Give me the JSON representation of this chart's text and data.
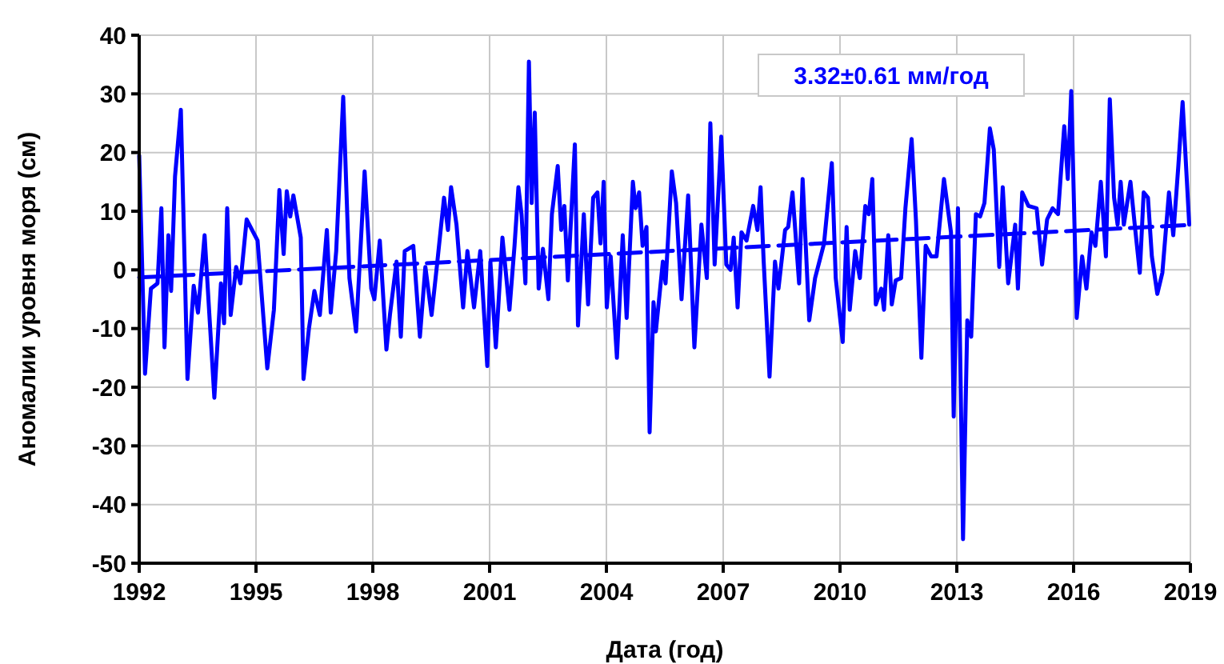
{
  "chart_data": {
    "type": "line",
    "xlabel": "Дата (год)",
    "ylabel": "Аномалии уровня моря (см)",
    "xlim": [
      1992,
      2019
    ],
    "ylim": [
      -50,
      40
    ],
    "xticks": [
      1992,
      1995,
      1998,
      2001,
      2004,
      2007,
      2010,
      2013,
      2016,
      2019
    ],
    "yticks": [
      -50,
      -40,
      -30,
      -20,
      -10,
      0,
      10,
      20,
      30,
      40
    ],
    "grid": true,
    "annotations": [
      "3.32±0.61 мм/год"
    ],
    "series": [
      {
        "color": "#0000ff",
        "line_style": "solid",
        "x": [
          1992.0,
          1992.15,
          1992.3,
          1992.47,
          1992.57,
          1992.65,
          1992.75,
          1992.82,
          1992.92,
          1993.07,
          1993.24,
          1993.4,
          1993.51,
          1993.68,
          1993.93,
          1994.1,
          1994.18,
          1994.26,
          1994.35,
          1994.49,
          1994.6,
          1994.76,
          1994.93,
          1995.04,
          1995.29,
          1995.46,
          1995.6,
          1995.71,
          1995.79,
          1995.88,
          1995.96,
          1996.15,
          1996.22,
          1996.36,
          1996.5,
          1996.64,
          1996.82,
          1996.92,
          1997.06,
          1997.24,
          1997.4,
          1997.57,
          1997.79,
          1997.96,
          1998.04,
          1998.18,
          1998.35,
          1998.44,
          1998.61,
          1998.72,
          1998.82,
          1999.04,
          1999.21,
          1999.35,
          1999.51,
          1999.65,
          1999.83,
          1999.93,
          2000.01,
          2000.15,
          2000.32,
          2000.43,
          2000.6,
          2000.76,
          2000.94,
          2001.02,
          2001.16,
          2001.33,
          2001.51,
          2001.64,
          2001.74,
          2001.82,
          2001.92,
          2002.01,
          2002.08,
          2002.16,
          2002.26,
          2002.37,
          2002.51,
          2002.6,
          2002.75,
          2002.84,
          2002.92,
          2003.01,
          2003.19,
          2003.27,
          2003.42,
          2003.53,
          2003.66,
          2003.77,
          2003.85,
          2003.93,
          2004.01,
          2004.11,
          2004.27,
          2004.42,
          2004.52,
          2004.68,
          2004.75,
          2004.84,
          2004.93,
          2005.03,
          2005.11,
          2005.21,
          2005.27,
          2005.45,
          2005.52,
          2005.68,
          2005.79,
          2005.93,
          2006.1,
          2006.26,
          2006.44,
          2006.58,
          2006.67,
          2006.78,
          2006.95,
          2007.08,
          2007.19,
          2007.27,
          2007.37,
          2007.47,
          2007.6,
          2007.77,
          2007.88,
          2007.96,
          2008.04,
          2008.19,
          2008.33,
          2008.42,
          2008.59,
          2008.67,
          2008.78,
          2008.95,
          2009.04,
          2009.21,
          2009.36,
          2009.59,
          2009.79,
          2009.89,
          2010.07,
          2010.17,
          2010.25,
          2010.39,
          2010.51,
          2010.65,
          2010.74,
          2010.83,
          2010.92,
          2011.06,
          2011.13,
          2011.24,
          2011.33,
          2011.43,
          2011.57,
          2011.68,
          2011.84,
          2011.95,
          2012.09,
          2012.2,
          2012.34,
          2012.48,
          2012.67,
          2012.85,
          2012.92,
          2013.03,
          2013.16,
          2013.27,
          2013.37,
          2013.49,
          2013.6,
          2013.71,
          2013.85,
          2013.95,
          2014.09,
          2014.18,
          2014.32,
          2014.5,
          2014.57,
          2014.68,
          2014.84,
          2015.05,
          2015.19,
          2015.32,
          2015.46,
          2015.6,
          2015.76,
          2015.85,
          2015.94,
          2016.08,
          2016.22,
          2016.33,
          2016.46,
          2016.56,
          2016.7,
          2016.83,
          2016.93,
          2017.04,
          2017.13,
          2017.21,
          2017.29,
          2017.46,
          2017.57,
          2017.7,
          2017.8,
          2017.91,
          2018.01,
          2018.15,
          2018.28,
          2018.45,
          2018.56,
          2018.69,
          2018.8,
          2018.97
        ],
        "values": [
          19.5,
          -17.7,
          -3.2,
          -2.3,
          10.5,
          -13.2,
          5.9,
          -3.6,
          15.9,
          27.3,
          -18.6,
          -2.7,
          -7.3,
          5.9,
          -21.8,
          -2.3,
          -9.1,
          10.5,
          -7.7,
          0.5,
          -2.3,
          8.6,
          6.4,
          5,
          -16.8,
          -6.8,
          13.6,
          2.7,
          13.4,
          9.1,
          12.7,
          5.5,
          -18.6,
          -10,
          -3.6,
          -7.7,
          6.8,
          -7.3,
          3.2,
          29.5,
          -1.4,
          -10.5,
          16.8,
          -3.2,
          -5,
          5,
          -13.6,
          -7.7,
          1.4,
          -11.4,
          3.2,
          4.1,
          -11.4,
          0.5,
          -7.7,
          0.9,
          12.3,
          6.8,
          14.1,
          7.7,
          -6.4,
          3.2,
          -6.4,
          3.2,
          -16.4,
          1.4,
          -13.2,
          5.5,
          -6.8,
          4.1,
          14.1,
          9.5,
          -2.3,
          35.5,
          11.4,
          26.8,
          -3.2,
          3.6,
          -5,
          9.5,
          17.7,
          6.8,
          10.9,
          -1.8,
          21.4,
          -9.5,
          9.5,
          -5.9,
          12.3,
          13.2,
          4.5,
          15,
          -6.4,
          2.3,
          -15,
          5.9,
          -8.2,
          15,
          10.5,
          13.2,
          4.1,
          7.3,
          -27.7,
          -5.5,
          -10.5,
          1.4,
          -2.3,
          16.8,
          11.4,
          -5,
          12.7,
          -13.2,
          7.7,
          -1.4,
          25,
          0.9,
          22.7,
          0.9,
          0,
          5.5,
          -6.4,
          6.4,
          5,
          10.9,
          6.8,
          14.1,
          1.4,
          -18.2,
          1.4,
          -3.2,
          6.8,
          7.3,
          13.2,
          -2.3,
          15.5,
          -8.6,
          -1.4,
          4.5,
          18.2,
          -1.4,
          -12.3,
          7.3,
          -6.8,
          3.2,
          -1.4,
          10.9,
          9.5,
          15.5,
          -5.9,
          -3.2,
          -6.8,
          5.9,
          -5.9,
          -1.8,
          -1.4,
          10.5,
          22.3,
          8.6,
          -15,
          4.1,
          2.3,
          2.3,
          15.5,
          6.4,
          -25,
          10.5,
          -45.9,
          -8.6,
          -11.4,
          9.5,
          9.1,
          11.4,
          24.1,
          20.5,
          0.5,
          14.1,
          -2.3,
          7.7,
          -3.2,
          13.2,
          10.9,
          10.5,
          0.9,
          8.6,
          10.5,
          9.5,
          24.5,
          15.5,
          30.5,
          -8.2,
          2.3,
          -3.2,
          6.4,
          4.1,
          15,
          2.3,
          29.1,
          12.3,
          7.7,
          15,
          7.7,
          15,
          7.7,
          -0.5,
          13.2,
          12.3,
          2.3,
          -4.1,
          -0.5,
          13.2,
          5.9,
          17.7,
          28.6,
          7.7
        ]
      },
      {
        "color": "#0000ff",
        "line_style": "dashed",
        "x": [
          1992,
          2019
        ],
        "values": [
          -1.3,
          7.66
        ]
      }
    ]
  }
}
